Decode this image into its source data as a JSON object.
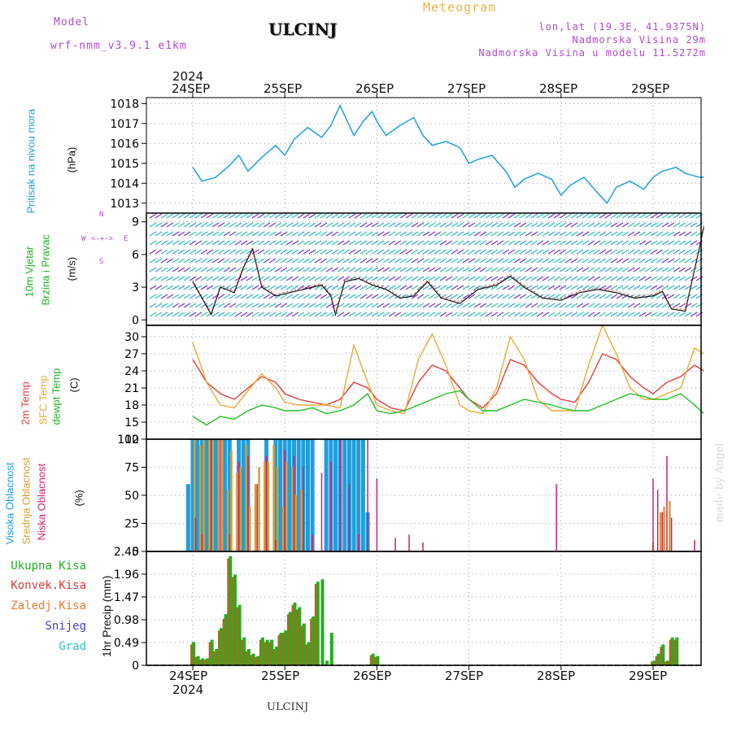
{
  "header": {
    "model_label": "Model",
    "model_name": "wrf-nmm_v3.9.1  e1km",
    "station": "ULCINJ",
    "product": "Meteogram",
    "lonlat": "lon,lat (19.3E, 41.9375N)",
    "elev": "Nadmorska Visina 29m",
    "elev_model": "Nadmorska Visina u modelu 11.5272m"
  },
  "footer": {
    "station": "ULCINJ",
    "credit": "made by Angel"
  },
  "time_axis": {
    "top_year": "2024",
    "bottom_year": "2024",
    "days": [
      "24SEP",
      "25SEP",
      "26SEP",
      "27SEP",
      "28SEP",
      "29SEP"
    ]
  },
  "colors": {
    "pressure": "#1ea0e0",
    "temp2m": "#e83c3c",
    "sfc": "#e8a838",
    "dew": "#20c020",
    "high": "#1e9ee0",
    "mid": "#d4a030",
    "low": "#d01e6e",
    "ukupna": "#20b020",
    "konvek": "#e03838",
    "zaledj": "#f07830",
    "snijeg": "#4040e0",
    "grad": "#30c0c0"
  },
  "chart_data": [
    {
      "type": "line",
      "panel": "pressure",
      "ylabel_name": "Pritisak na nivou mora",
      "ylabel_unit": "(hPa)",
      "ylim": [
        1012.5,
        1018.3
      ],
      "yticks": [
        "1013",
        "1014",
        "1015",
        "1016",
        "1017",
        "1018"
      ],
      "x_days": [
        0,
        0.1,
        0.25,
        0.4,
        0.5,
        0.6,
        0.75,
        0.9,
        1.0,
        1.1,
        1.25,
        1.4,
        1.5,
        1.6,
        1.75,
        1.85,
        1.95,
        2.0,
        2.1,
        2.25,
        2.4,
        2.5,
        2.6,
        2.75,
        2.9,
        3.0,
        3.1,
        3.25,
        3.4,
        3.5,
        3.6,
        3.75,
        3.9,
        4.0,
        4.1,
        4.25,
        4.4,
        4.5,
        4.6,
        4.75,
        4.9,
        5.0,
        5.1,
        5.25,
        5.35,
        5.5,
        5.55
      ],
      "series": [
        {
          "values": [
            1014.8,
            1014.1,
            1014.3,
            1014.9,
            1015.4,
            1014.6,
            1015.3,
            1015.9,
            1015.4,
            1016.2,
            1016.8,
            1016.3,
            1016.9,
            1017.9,
            1016.4,
            1017.1,
            1017.6,
            1017.1,
            1016.4,
            1016.9,
            1017.3,
            1016.4,
            1015.9,
            1016.1,
            1015.8,
            1015.0,
            1015.2,
            1015.4,
            1014.6,
            1013.8,
            1014.2,
            1014.5,
            1014.2,
            1013.4,
            1013.9,
            1014.3,
            1013.5,
            1013.0,
            1013.8,
            1014.1,
            1013.7,
            1014.3,
            1014.6,
            1014.8,
            1014.5,
            1014.3,
            1014.3
          ]
        }
      ]
    },
    {
      "type": "line",
      "panel": "wind",
      "ylabel_name": "10m Vjetar",
      "ylabel_name2": "Brzina i Pravac",
      "ylabel_unit": "(m/s)",
      "compass": {
        "n": "N",
        "s": "S",
        "e": "E",
        "w": "W"
      },
      "ylim": [
        -0.5,
        9.8
      ],
      "yticks": [
        "0",
        "3",
        "6",
        "9"
      ],
      "x_days": [
        0,
        0.1,
        0.2,
        0.3,
        0.45,
        0.55,
        0.65,
        0.75,
        0.9,
        1.0,
        1.2,
        1.4,
        1.5,
        1.55,
        1.65,
        1.8,
        1.95,
        2.1,
        2.25,
        2.4,
        2.55,
        2.7,
        2.9,
        3.1,
        3.3,
        3.45,
        3.6,
        3.8,
        4.0,
        4.2,
        4.4,
        4.6,
        4.8,
        5.0,
        5.1,
        5.2,
        5.35,
        5.5,
        5.55
      ],
      "series": [
        {
          "name": "speed",
          "values": [
            3.5,
            2.0,
            0.5,
            3.0,
            2.5,
            4.8,
            6.5,
            3.0,
            2.2,
            2.4,
            2.8,
            3.2,
            2.2,
            0.5,
            3.5,
            3.8,
            3.2,
            2.8,
            2.0,
            2.2,
            3.5,
            2.0,
            1.5,
            2.8,
            3.2,
            4.0,
            3.0,
            2.0,
            1.8,
            2.5,
            2.8,
            2.5,
            2.0,
            2.2,
            2.6,
            1.0,
            0.8,
            6.5,
            8.5
          ]
        }
      ]
    },
    {
      "type": "line",
      "panel": "temperature",
      "ylabel_name": "2m Temp",
      "ylabel_name2": "SFC Temp",
      "ylabel_name3": "dewpt Temp",
      "ylabel_unit": "(C)",
      "ylim": [
        12,
        32
      ],
      "yticks": [
        "12",
        "15",
        "18",
        "21",
        "24",
        "27",
        "30"
      ],
      "x_days": [
        0,
        0.15,
        0.3,
        0.45,
        0.6,
        0.75,
        0.9,
        1.0,
        1.15,
        1.3,
        1.45,
        1.6,
        1.75,
        1.9,
        2.0,
        2.15,
        2.3,
        2.45,
        2.6,
        2.75,
        2.9,
        3.0,
        3.15,
        3.3,
        3.45,
        3.6,
        3.75,
        3.9,
        4.0,
        4.15,
        4.3,
        4.45,
        4.6,
        4.75,
        4.9,
        5.0,
        5.15,
        5.3,
        5.45,
        5.55
      ],
      "series": [
        {
          "name": "2m",
          "values": [
            26,
            22,
            20,
            19,
            21,
            23,
            22,
            20,
            19,
            18.5,
            18,
            19,
            22,
            21,
            19,
            17.5,
            17,
            22,
            25,
            24,
            21,
            19,
            17.5,
            20,
            26,
            25,
            22,
            20,
            19,
            18.5,
            22,
            27,
            26,
            23,
            21,
            20,
            22,
            23,
            25,
            24
          ]
        },
        {
          "name": "sfc",
          "values": [
            29,
            22,
            18,
            17.5,
            20.5,
            23.5,
            21,
            18.5,
            18,
            18,
            18,
            17.5,
            28.5,
            22,
            18,
            17,
            16.5,
            26,
            30.5,
            25,
            18,
            17,
            16.5,
            21,
            30,
            26,
            19,
            17,
            17,
            17,
            25,
            32,
            27,
            21,
            19,
            19,
            20,
            21,
            28,
            27
          ]
        },
        {
          "name": "dewpt",
          "values": [
            16,
            14.5,
            16,
            15.5,
            17,
            18,
            17.5,
            17,
            17,
            17.5,
            16.5,
            17,
            18,
            20,
            17,
            16.5,
            17,
            18,
            19,
            20,
            20.5,
            19,
            17,
            17,
            18,
            19,
            18.5,
            18,
            17.5,
            17,
            17,
            18,
            19,
            20,
            19.5,
            19,
            19,
            20,
            18,
            16.5
          ]
        }
      ]
    },
    {
      "type": "bar",
      "panel": "cloud",
      "ylabel_name": "Visoka Oblacnost",
      "ylabel_name2": "Srednja Oblacnost",
      "ylabel_name3": "Niska Oblacnost",
      "ylabel_unit": "(%)",
      "ylim": [
        0,
        100
      ],
      "yticks": [
        "0",
        "25",
        "50",
        "75",
        "100"
      ],
      "high": {
        "x": [
          -0.05,
          0.0,
          0.05,
          0.1,
          0.15,
          0.2,
          0.25,
          0.35,
          0.4,
          0.5,
          0.55,
          0.6,
          0.8,
          0.9,
          0.95,
          1.0,
          1.05,
          1.1,
          1.15,
          1.2,
          1.25,
          1.3,
          1.45,
          1.5,
          1.55,
          1.6,
          1.65,
          1.7,
          1.75,
          1.8,
          1.85,
          1.9
        ],
        "values": [
          60,
          100,
          100,
          100,
          100,
          100,
          100,
          100,
          100,
          100,
          100,
          100,
          100,
          100,
          100,
          100,
          100,
          100,
          100,
          100,
          100,
          100,
          100,
          100,
          100,
          100,
          100,
          100,
          100,
          100,
          100,
          35
        ]
      },
      "mid": {
        "x": [
          0.02,
          0.08,
          0.12,
          0.18,
          0.22,
          0.28,
          0.32,
          0.38,
          0.42,
          0.48,
          0.52,
          0.58,
          0.62,
          0.68,
          0.72,
          0.78,
          0.82,
          0.88,
          0.92,
          0.98,
          1.02,
          1.08,
          1.12,
          1.18,
          5.0,
          5.08,
          5.12,
          5.18
        ],
        "values": [
          100,
          95,
          100,
          100,
          100,
          100,
          100,
          55,
          90,
          70,
          75,
          95,
          40,
          60,
          75,
          80,
          80,
          95,
          75,
          40,
          80,
          75,
          50,
          55,
          8,
          35,
          40,
          45
        ]
      },
      "low": {
        "x": [
          0.03,
          0.1,
          0.2,
          0.3,
          0.4,
          0.5,
          0.6,
          0.7,
          0.8,
          0.9,
          1.0,
          1.1,
          1.2,
          1.3,
          1.4,
          1.5,
          1.6,
          1.7,
          1.8,
          1.9,
          2.0,
          2.2,
          2.35,
          2.5,
          3.95,
          5.0,
          5.05,
          5.1,
          5.15,
          5.2,
          5.45
        ],
        "values": [
          30,
          15,
          100,
          100,
          15,
          80,
          85,
          60,
          85,
          10,
          90,
          85,
          75,
          15,
          70,
          80,
          100,
          60,
          15,
          100,
          65,
          12,
          15,
          8,
          60,
          65,
          55,
          35,
          85,
          30,
          10
        ]
      }
    },
    {
      "type": "bar",
      "panel": "precip",
      "ylabel_name": "1hr Precip",
      "ylabel_unit": "(mm)",
      "ylim": [
        0,
        2.45
      ],
      "yticks": [
        "0",
        "0.49",
        "0.98",
        "1.47",
        "1.96",
        "2.45"
      ],
      "legend": [
        "Ukupna Kisa",
        "Konvek.Kisa",
        "Zaledj.Kisa",
        "Snijeg",
        "Grad"
      ],
      "x": [
        0.0,
        0.05,
        0.1,
        0.15,
        0.2,
        0.25,
        0.3,
        0.35,
        0.4,
        0.45,
        0.5,
        0.55,
        0.6,
        0.65,
        0.7,
        0.75,
        0.8,
        0.85,
        0.9,
        0.95,
        1.0,
        1.05,
        1.1,
        1.15,
        1.2,
        1.25,
        1.3,
        1.35,
        1.4,
        1.45,
        1.5,
        1.55,
        1.6,
        1.95,
        2.0,
        5.0,
        5.05,
        5.1,
        5.15,
        5.2,
        5.25
      ],
      "series": [
        {
          "name": "Ukupna Kisa",
          "values": [
            0.5,
            0.2,
            0.15,
            0.15,
            0.55,
            0.35,
            0.8,
            1.1,
            2.35,
            1.95,
            1.3,
            0.6,
            0.35,
            0.25,
            0.2,
            0.6,
            0.55,
            0.55,
            0.4,
            0.7,
            0.75,
            1.15,
            1.35,
            1.25,
            0.9,
            0.5,
            1.05,
            1.8,
            1.85,
            0.1,
            0.7,
            0.0,
            0.0,
            0.25,
            0.2,
            0.1,
            0.25,
            0.45,
            0.1,
            0.6,
            0.6
          ]
        },
        {
          "name": "Konvek.Kisa",
          "values": [
            0.45,
            0.18,
            0.12,
            0.12,
            0.5,
            0.3,
            0.75,
            1.0,
            2.3,
            1.9,
            1.25,
            0.55,
            0.3,
            0.22,
            0.18,
            0.55,
            0.5,
            0.5,
            0.35,
            0.65,
            0.7,
            1.1,
            1.3,
            1.2,
            0.85,
            0.45,
            1.0,
            1.75,
            0.0,
            0.0,
            0.0,
            0.0,
            0.0,
            0.22,
            0.18,
            0.08,
            0.2,
            0.4,
            0.08,
            0.55,
            0.55
          ]
        }
      ]
    }
  ]
}
